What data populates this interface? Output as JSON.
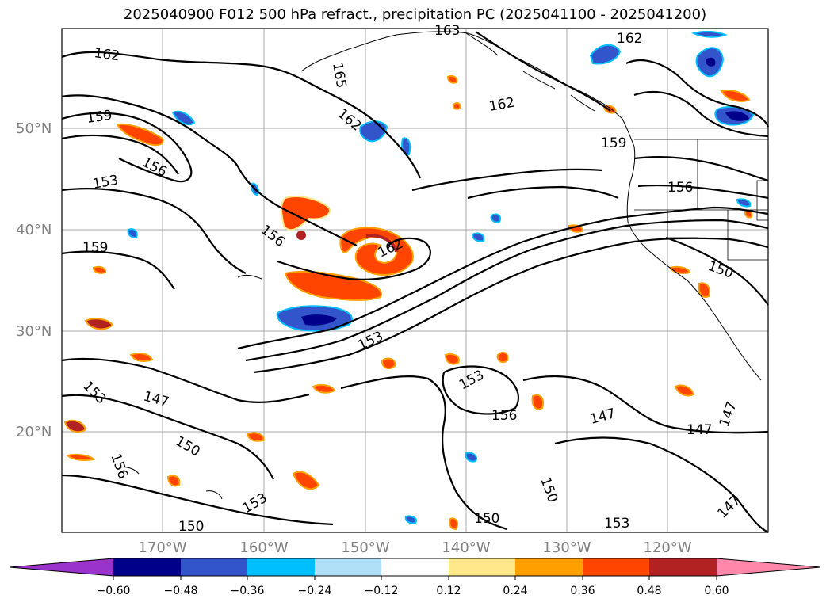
{
  "title": "2025040900 F012 500 hPa refract., precipitation PC (2025041100 - 2025041200)",
  "map": {
    "lat_labels": [
      "50°N",
      "40°N",
      "30°N",
      "20°N"
    ],
    "lon_labels": [
      "170°W",
      "160°W",
      "150°W",
      "140°W",
      "130°W",
      "120°W"
    ],
    "contour_labels": [
      "162",
      "163",
      "165",
      "162",
      "159",
      "156",
      "153",
      "162",
      "162",
      "159",
      "156",
      "156",
      "159",
      "162",
      "150",
      "153",
      "153",
      "147",
      "153",
      "156",
      "150",
      "150",
      "147",
      "147",
      "147",
      "153",
      "150",
      "156",
      "153",
      "150",
      "147"
    ]
  },
  "colorbar": {
    "tick_labels": [
      "−0.60",
      "−0.48",
      "−0.36",
      "−0.24",
      "−0.12",
      "0.12",
      "0.24",
      "0.36",
      "0.48",
      "0.60"
    ],
    "colors": {
      "lt_neg060": "#9933cc",
      "neg060_neg048": "#00008b",
      "neg048_neg036": "#3355cc",
      "neg036_neg024": "#00bfff",
      "neg024_neg012": "#b0e0f8",
      "neg012_012": "#ffffff",
      "p012_p024": "#ffe88a",
      "p024_p036": "#ff9f00",
      "p036_p048": "#ff4500",
      "p048_p060": "#b22222",
      "gt_p060": "#ff88aa"
    }
  }
}
